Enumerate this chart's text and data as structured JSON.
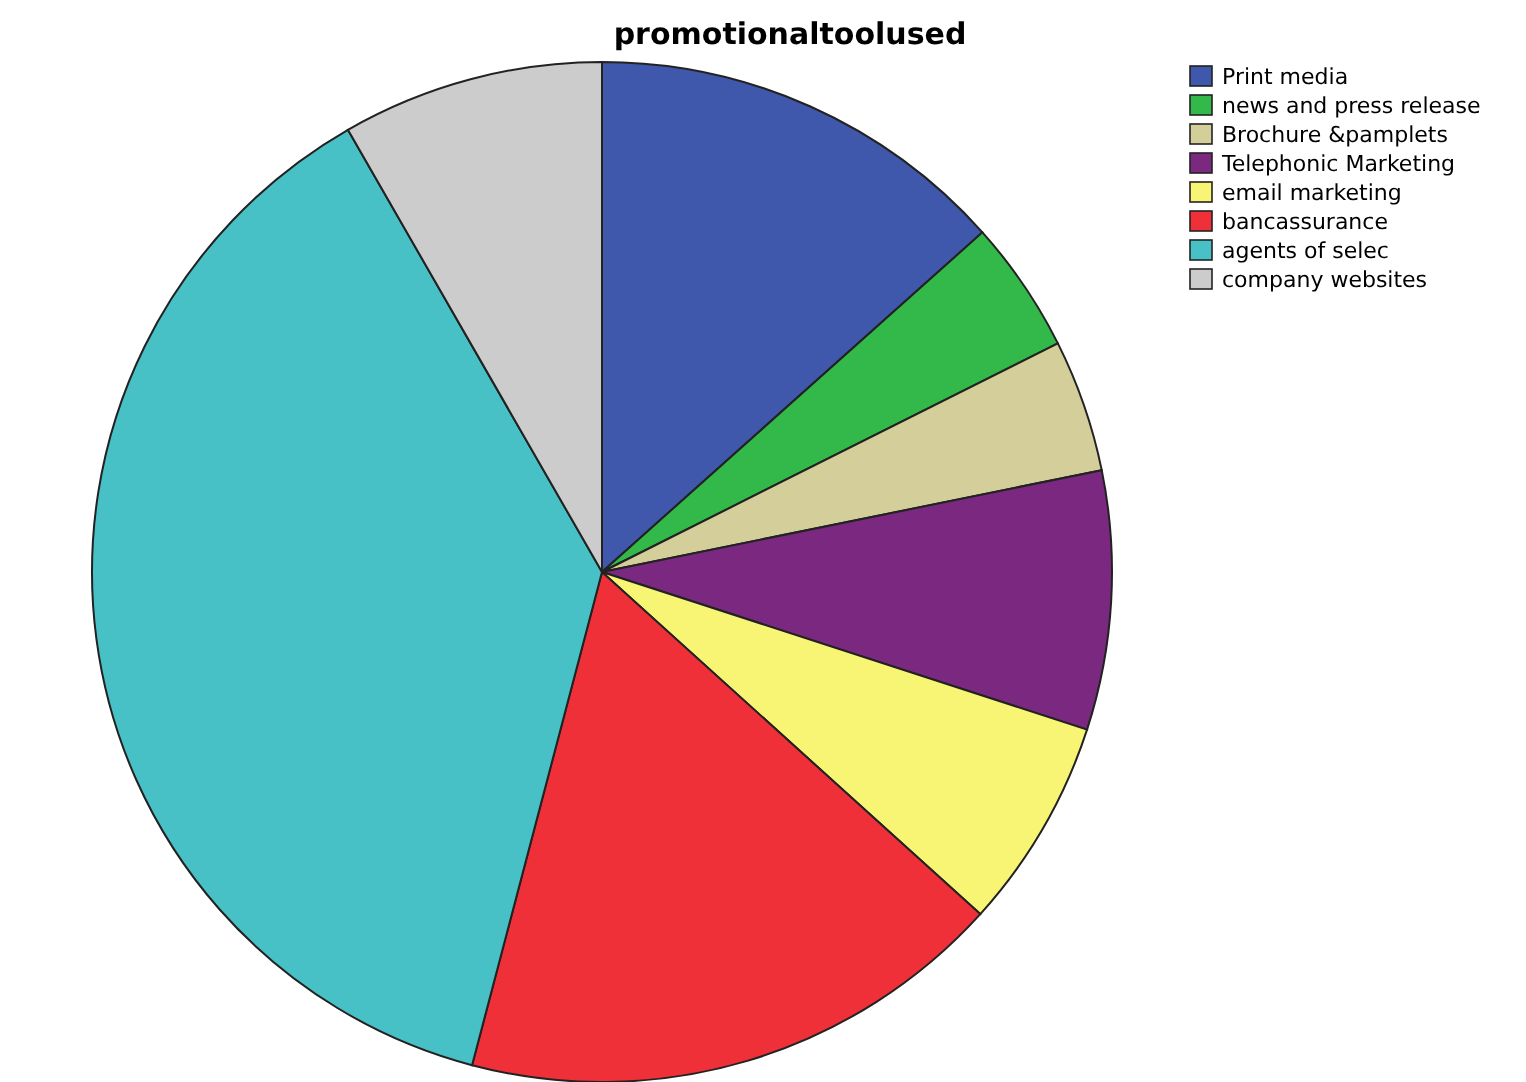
{
  "chart_data": {
    "type": "pie",
    "title": "promotionaltoolused",
    "categories": [
      "Print media",
      "news and press release",
      "Brochure &pamplets",
      "Telephonic Marketing",
      "email marketing",
      "bancassurance",
      "agents of selec",
      "company websites"
    ],
    "values": [
      13.4,
      4.2,
      4.2,
      8.2,
      6.7,
      17.4,
      37.6,
      8.3
    ],
    "colors": [
      "#3f58ab",
      "#33b94a",
      "#d4cf9a",
      "#7a2880",
      "#f8f575",
      "#ef3038",
      "#48c1c6",
      "#cccccc"
    ],
    "legend": "top right"
  }
}
